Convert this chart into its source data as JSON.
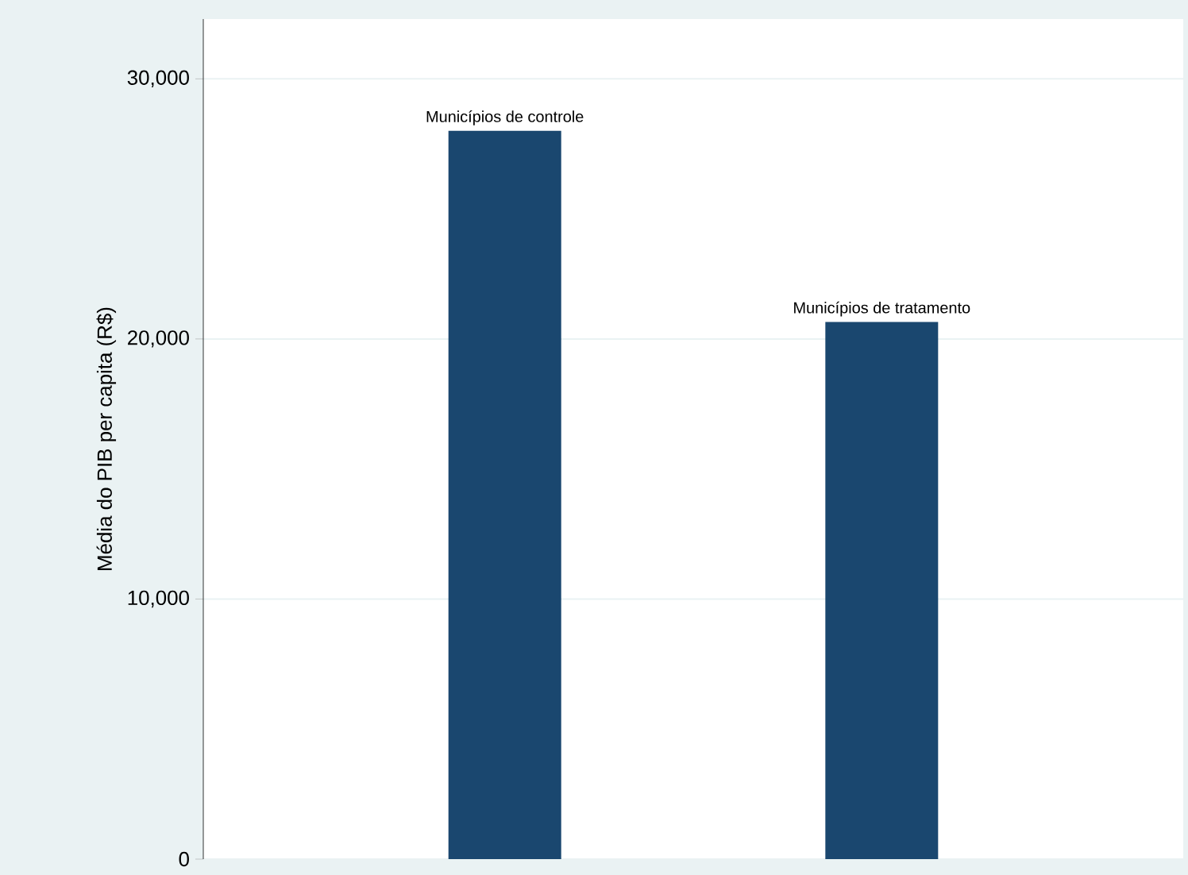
{
  "chart_data": {
    "type": "bar",
    "ylabel": "Média do PIB per capita (R$)",
    "categories": [
      "Municípios de controle",
      "Municípios de tratamento"
    ],
    "values": [
      28000,
      20650
    ],
    "color": "#1a476f",
    "ylim": [
      0,
      32300
    ],
    "yticks": [
      {
        "value": 0,
        "label": "0"
      },
      {
        "value": 10000,
        "label": "10,000"
      },
      {
        "value": 20000,
        "label": "20,000"
      },
      {
        "value": 30000,
        "label": "30,000"
      }
    ],
    "grid": "y"
  }
}
